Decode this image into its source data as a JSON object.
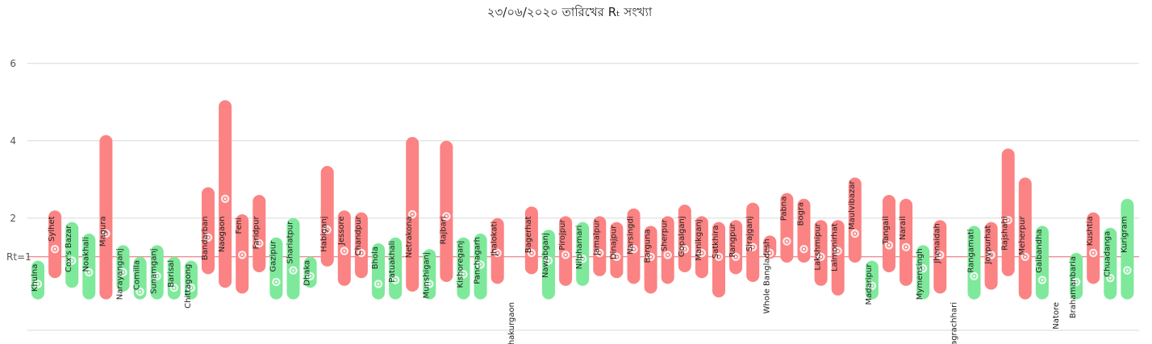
{
  "chart_data": {
    "type": "range-bar",
    "title": "২৩/০৬/২০২০ তারিখের Rₜ সংখ্যা",
    "ylim": [
      -0.9,
      6.6
    ],
    "yticks": [
      2,
      4,
      6
    ],
    "reference_line": {
      "value": 1,
      "label": "Rt=1"
    },
    "colors": {
      "above": "#fb8383",
      "below": "#7ee99a",
      "reference": "#e5484d",
      "grid": "#d9d9d9"
    },
    "series": [
      {
        "name": "Khulna",
        "low": -0.1,
        "high": 0.9,
        "rt": 0.3
      },
      {
        "name": "Sylhet",
        "low": 0.45,
        "high": 2.2,
        "rt": 1.2
      },
      {
        "name": "Cox's Bazar",
        "low": 0.2,
        "high": 1.9,
        "rt": 0.9
      },
      {
        "name": "Noakhali",
        "low": -0.1,
        "high": 1.6,
        "rt": 0.6
      },
      {
        "name": "Magura",
        "low": -0.1,
        "high": 4.15,
        "rt": 1.6
      },
      {
        "name": "Narayanganj",
        "low": 0.1,
        "high": 1.3,
        "rt": 0.6
      },
      {
        "name": "Comilla",
        "low": -0.1,
        "high": 1.0,
        "rt": 0.1
      },
      {
        "name": "Sunamganj",
        "low": -0.1,
        "high": 1.3,
        "rt": 0.5
      },
      {
        "name": "Barisal",
        "low": -0.1,
        "high": 1.0,
        "rt": 0.2
      },
      {
        "name": "Chittagong",
        "low": -0.1,
        "high": 0.9,
        "rt": 0.2
      },
      {
        "name": "Bandarban",
        "low": 0.55,
        "high": 2.8,
        "rt": 1.5
      },
      {
        "name": "Naogaon",
        "low": 0.2,
        "high": 5.05,
        "rt": 2.5
      },
      {
        "name": "Feni",
        "low": 0.05,
        "high": 2.1,
        "rt": 1.05
      },
      {
        "name": "Faridpur",
        "low": 0.6,
        "high": 2.6,
        "rt": 1.35
      },
      {
        "name": "Gazipur",
        "low": -0.1,
        "high": 1.5,
        "rt": 0.35
      },
      {
        "name": "Shariatpur",
        "low": -0.1,
        "high": 2.0,
        "rt": 0.65
      },
      {
        "name": "Dhaka",
        "low": 0.2,
        "high": 1.0,
        "rt": 0.5
      },
      {
        "name": "Habiganj",
        "low": 0.75,
        "high": 3.35,
        "rt": 1.7
      },
      {
        "name": "Jessore",
        "low": 0.25,
        "high": 2.2,
        "rt": 1.15
      },
      {
        "name": "Chandpur",
        "low": 0.45,
        "high": 2.15,
        "rt": 1.1
      },
      {
        "name": "Bhola",
        "low": -0.1,
        "high": 1.35,
        "rt": 0.3
      },
      {
        "name": "Patuakhali",
        "low": -0.1,
        "high": 1.5,
        "rt": 0.4
      },
      {
        "name": "Netrakona",
        "low": 0.1,
        "high": 4.1,
        "rt": 2.1
      },
      {
        "name": "Munshiganj",
        "low": -0.1,
        "high": 1.2,
        "rt": 0.3
      },
      {
        "name": "Rajbari",
        "low": 0.35,
        "high": 4.0,
        "rt": 2.05
      },
      {
        "name": "Kishoreganj",
        "low": -0.1,
        "high": 1.5,
        "rt": 0.55
      },
      {
        "name": "Panchagarh",
        "low": -0.1,
        "high": 1.6,
        "rt": 0.8
      },
      {
        "name": "Jhalokati",
        "low": 0.3,
        "high": 2.0,
        "rt": 1.1
      },
      {
        "name": "Thakurgaon",
        "low": null,
        "high": null,
        "rt": null
      },
      {
        "name": "Bagerhat",
        "low": 0.55,
        "high": 2.3,
        "rt": 1.1
      },
      {
        "name": "Nawabganj",
        "low": -0.1,
        "high": 1.7,
        "rt": 0.9
      },
      {
        "name": "Pirojpur",
        "low": 0.25,
        "high": 2.05,
        "rt": 1.05
      },
      {
        "name": "Nilphamari",
        "low": 0.25,
        "high": 1.9,
        "rt": 0.95
      },
      {
        "name": "Jamalpur",
        "low": 0.5,
        "high": 2.05,
        "rt": 1.1
      },
      {
        "name": "Dinajpur",
        "low": 0.45,
        "high": 1.9,
        "rt": 1.0
      },
      {
        "name": "Narsingdi",
        "low": 0.3,
        "high": 2.25,
        "rt": 1.2
      },
      {
        "name": "Barguna",
        "low": 0.05,
        "high": 1.8,
        "rt": 1.0
      },
      {
        "name": "Sherpur",
        "low": 0.3,
        "high": 2.05,
        "rt": 1.05
      },
      {
        "name": "Gopalganj",
        "low": 0.6,
        "high": 2.35,
        "rt": 1.2
      },
      {
        "name": "Manikganj",
        "low": 0.45,
        "high": 2.05,
        "rt": 1.1
      },
      {
        "name": "Satkhira",
        "low": -0.05,
        "high": 1.9,
        "rt": 1.0
      },
      {
        "name": "Rangpur",
        "low": 0.55,
        "high": 1.95,
        "rt": 1.0
      },
      {
        "name": "Sirajganj",
        "low": 0.35,
        "high": 2.4,
        "rt": 1.25
      },
      {
        "name": "Whole Bangladesh",
        "low": 0.95,
        "high": 1.55,
        "rt": 1.1
      },
      {
        "name": "Pabna",
        "low": 0.85,
        "high": 2.65,
        "rt": 1.4
      },
      {
        "name": "Bogra",
        "low": 0.85,
        "high": 2.5,
        "rt": 1.2
      },
      {
        "name": "Lakshmipur",
        "low": 0.25,
        "high": 1.95,
        "rt": 1.0
      },
      {
        "name": "Lalmonirhat",
        "low": 0.0,
        "high": 1.95,
        "rt": 1.15
      },
      {
        "name": "Maulvibazar",
        "low": 0.85,
        "high": 3.05,
        "rt": 1.6
      },
      {
        "name": "Madaripur",
        "low": -0.1,
        "high": 0.9,
        "rt": 0.25
      },
      {
        "name": "Tangail",
        "low": 0.6,
        "high": 2.6,
        "rt": 1.3
      },
      {
        "name": "Narail",
        "low": 0.25,
        "high": 2.5,
        "rt": 1.25
      },
      {
        "name": "Mymensingh",
        "low": -0.1,
        "high": 1.3,
        "rt": 0.7
      },
      {
        "name": "Jhenaidah",
        "low": 0.05,
        "high": 1.95,
        "rt": 1.05
      },
      {
        "name": "Khagrachhari",
        "low": null,
        "high": null,
        "rt": null
      },
      {
        "name": "Rangamati",
        "low": -0.1,
        "high": 1.8,
        "rt": 0.5
      },
      {
        "name": "Joypurhat",
        "low": 0.15,
        "high": 1.9,
        "rt": 1.05
      },
      {
        "name": "Rajshahi",
        "low": 0.5,
        "high": 3.8,
        "rt": 1.95
      },
      {
        "name": "Meherpur",
        "low": -0.1,
        "high": 3.05,
        "rt": 1.0
      },
      {
        "name": "Gaibandha",
        "low": -0.1,
        "high": 1.8,
        "rt": 0.4
      },
      {
        "name": "Natore",
        "low": null,
        "high": null,
        "rt": null
      },
      {
        "name": "Brahamanbaria",
        "low": -0.1,
        "high": 1.1,
        "rt": 0.35
      },
      {
        "name": "Kushtia",
        "low": 0.3,
        "high": 2.15,
        "rt": 1.1
      },
      {
        "name": "Chuadanga",
        "low": -0.1,
        "high": 1.75,
        "rt": 0.45
      },
      {
        "name": "Kurigram",
        "low": -0.1,
        "high": 2.5,
        "rt": 0.65
      }
    ]
  }
}
